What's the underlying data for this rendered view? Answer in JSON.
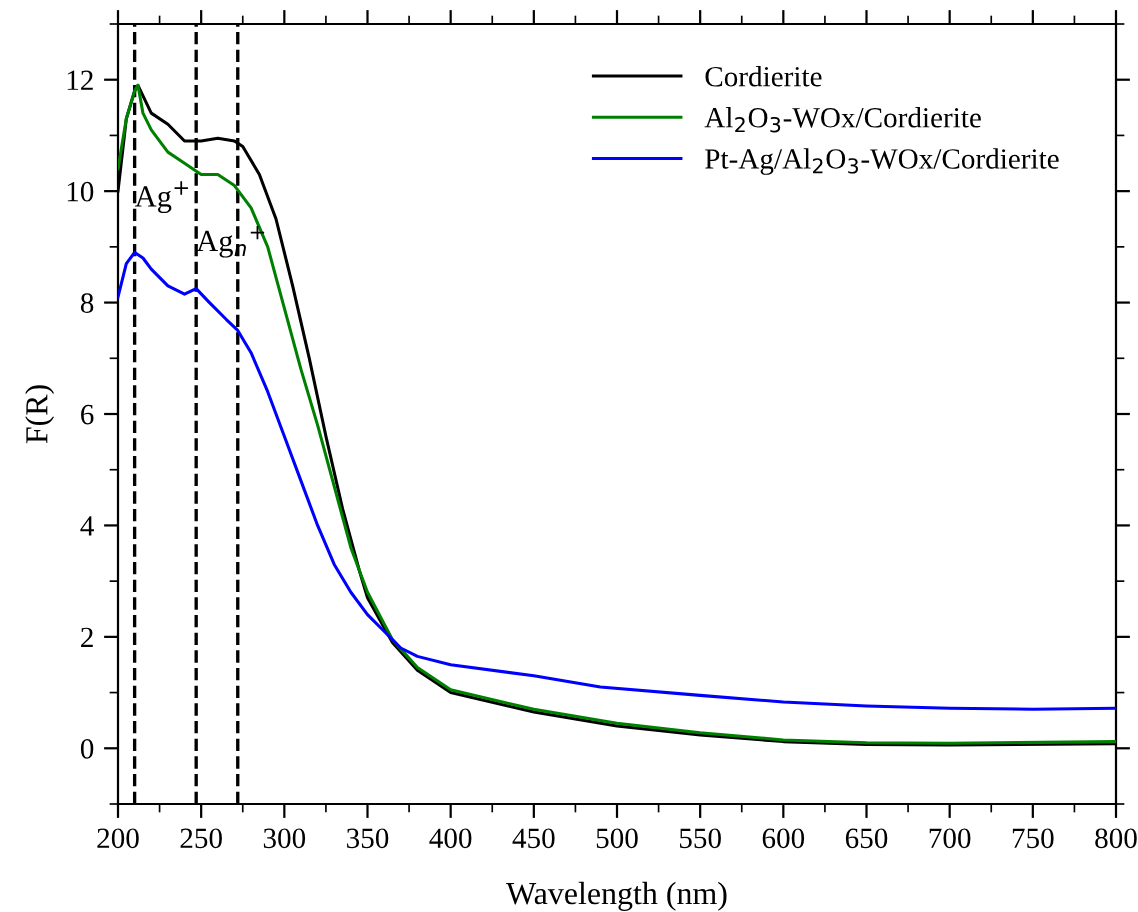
{
  "chart_data": {
    "type": "line",
    "xlabel": "Wavelength (nm)",
    "ylabel": "F(R)",
    "xlim": [
      200,
      800
    ],
    "ylim": [
      -1,
      13
    ],
    "xticks": [
      200,
      250,
      300,
      350,
      400,
      450,
      500,
      550,
      600,
      650,
      700,
      750,
      800
    ],
    "yticks": [
      0,
      2,
      4,
      6,
      8,
      10,
      12
    ],
    "grid": false,
    "legend": "top right",
    "marker": "none",
    "line_style": "solid",
    "series": [
      {
        "name": "Cordierite",
        "color": "#000000",
        "x": [
          200,
          205,
          210,
          212,
          220,
          230,
          240,
          250,
          260,
          270,
          275,
          285,
          295,
          305,
          315,
          325,
          335,
          345,
          350,
          365,
          380,
          400,
          450,
          500,
          550,
          600,
          650,
          700,
          800
        ],
        "values": [
          10.0,
          11.3,
          11.8,
          11.9,
          11.4,
          11.2,
          10.9,
          10.9,
          10.95,
          10.9,
          10.8,
          10.3,
          9.5,
          8.3,
          7.0,
          5.6,
          4.3,
          3.2,
          2.7,
          1.9,
          1.4,
          1.0,
          0.65,
          0.4,
          0.24,
          0.12,
          0.07,
          0.06,
          0.08
        ]
      },
      {
        "name": "Al$_{2}$O$_{3}$-WOx/Cordierite",
        "color": "#008000",
        "x": [
          200,
          205,
          210,
          212,
          215,
          220,
          230,
          240,
          250,
          260,
          270,
          280,
          290,
          300,
          310,
          320,
          330,
          340,
          350,
          365,
          380,
          400,
          450,
          500,
          550,
          600,
          650,
          700,
          800
        ],
        "values": [
          10.4,
          11.3,
          11.8,
          11.9,
          11.4,
          11.1,
          10.7,
          10.5,
          10.3,
          10.3,
          10.1,
          9.7,
          9.0,
          7.9,
          6.8,
          5.8,
          4.7,
          3.6,
          2.8,
          1.95,
          1.45,
          1.05,
          0.7,
          0.45,
          0.28,
          0.15,
          0.1,
          0.09,
          0.12
        ]
      },
      {
        "name": "Pt-Ag/Al$_{2}$O$_{3}$-WOx/Cordierite",
        "color": "#0000ff",
        "x": [
          200,
          205,
          210,
          215,
          220,
          230,
          240,
          247,
          255,
          265,
          272,
          280,
          290,
          300,
          310,
          320,
          330,
          340,
          350,
          360,
          370,
          380,
          400,
          450,
          490,
          550,
          600,
          650,
          700,
          750,
          800
        ],
        "values": [
          8.1,
          8.7,
          8.9,
          8.8,
          8.6,
          8.3,
          8.15,
          8.25,
          8.0,
          7.7,
          7.5,
          7.1,
          6.4,
          5.6,
          4.8,
          4.0,
          3.3,
          2.8,
          2.4,
          2.1,
          1.8,
          1.65,
          1.5,
          1.3,
          1.1,
          0.95,
          0.83,
          0.76,
          0.72,
          0.7,
          0.72
        ]
      }
    ],
    "ref_lines": [
      {
        "axis": "x",
        "value": 210,
        "color": "#000000",
        "line_style": "dashed"
      },
      {
        "axis": "x",
        "value": 247,
        "color": "#000000",
        "line_style": "dashed"
      },
      {
        "axis": "x",
        "value": 272,
        "color": "#000000",
        "line_style": "dashed"
      }
    ],
    "annotations": [
      {
        "text": "Ag$^{+}$",
        "x": 210,
        "y": 9.6
      },
      {
        "text": "Ag$_{n}$$^{+}$",
        "x": 247,
        "y": 8.8
      }
    ]
  }
}
